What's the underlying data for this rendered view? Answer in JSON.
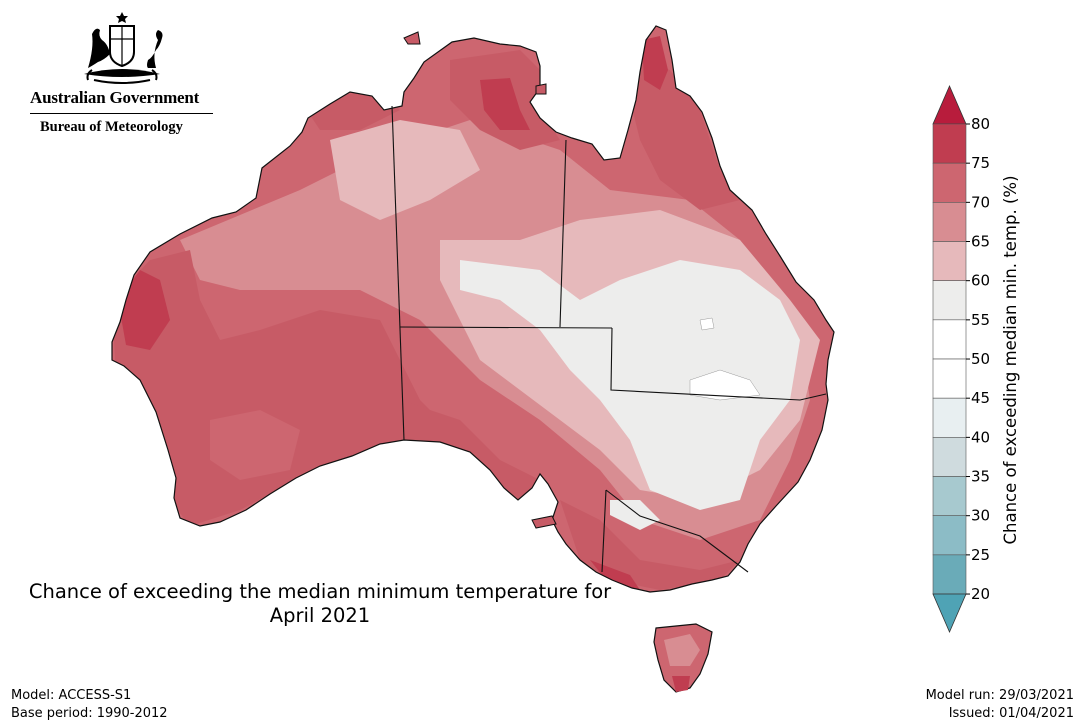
{
  "logo": {
    "government": "Australian Government",
    "bureau": "Bureau of Meteorology"
  },
  "title_line1": "Chance of exceeding the median minimum temperature for",
  "title_line2": "April 2021",
  "footer_left": [
    "Model: ACCESS-S1",
    "Base period: 1990-2012"
  ],
  "footer_right": [
    "Model run: 29/03/2021",
    "Issued: 01/04/2021"
  ],
  "colorbar": {
    "label": "Chance of exceeding median min. temp. (%)",
    "ticks": [
      "80",
      "75",
      "70",
      "65",
      "60",
      "55",
      "50",
      "45",
      "40",
      "35",
      "30",
      "25",
      "20"
    ],
    "bands": [
      {
        "range": "75-80",
        "color": "#c03d50"
      },
      {
        "range": "70-75",
        "color": "#cd6670"
      },
      {
        "range": "65-70",
        "color": "#d88d92"
      },
      {
        "range": "60-65",
        "color": "#e6b9bb"
      },
      {
        "range": "55-60",
        "color": "#ededec"
      },
      {
        "range": "50-55",
        "color": "#ffffff"
      },
      {
        "range": "45-50",
        "color": "#ffffff"
      },
      {
        "range": "40-45",
        "color": "#e8eff1"
      },
      {
        "range": "35-40",
        "color": "#cfdbde"
      },
      {
        "range": "30-35",
        "color": "#a7c9cf"
      },
      {
        "range": "25-30",
        "color": "#8cbcc6"
      },
      {
        "range": "20-25",
        "color": "#6aabb8"
      }
    ],
    "over_color": "#b81c3c",
    "under_color": "#4fa3b5"
  }
}
